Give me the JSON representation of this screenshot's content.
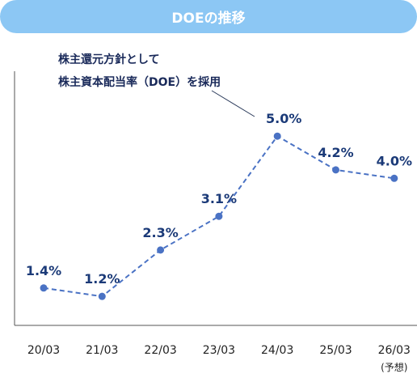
{
  "chart_data": {
    "type": "line",
    "title": "DOEの推移",
    "annotation": [
      "株主還元方針として",
      "株主資本配当率（DOE）を採用"
    ],
    "categories": [
      "20/03",
      "21/03",
      "22/03",
      "23/03",
      "24/03",
      "25/03",
      "26/03"
    ],
    "category_sub": [
      "",
      "",
      "",
      "",
      "",
      "",
      "(予想)"
    ],
    "values": [
      1.4,
      1.2,
      2.3,
      3.1,
      5.0,
      4.2,
      4.0
    ],
    "data_labels": [
      "1.4%",
      "1.2%",
      "2.3%",
      "3.1%",
      "5.0%",
      "4.2%",
      "4.0%"
    ],
    "ylim": [
      0,
      5.0
    ],
    "grid": false,
    "legend": "none",
    "line_style": "dashed",
    "colors": {
      "title_bg": "#8cc7f4",
      "line": "#4a72c4",
      "label": "#1b3a78",
      "axis": "#555555"
    }
  }
}
